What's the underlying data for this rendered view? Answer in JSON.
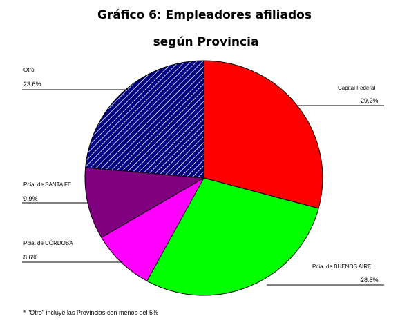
{
  "chart_data": {
    "type": "pie",
    "title_line1": "Gráfico 6: Empleadores afiliados",
    "title_line2": "según Provincia",
    "slices": [
      {
        "label": "Capital Federal",
        "pct_label": "29.2%",
        "value": 29.2,
        "color": "#ff0000",
        "pattern": "solid"
      },
      {
        "label": "Pcia. de BUENOS AIRE",
        "pct_label": "28.8%",
        "value": 28.8,
        "color": "#00ff00",
        "pattern": "solid"
      },
      {
        "label": "Pcia. de CÓRDOBA",
        "pct_label": "8.6%",
        "value": 8.6,
        "color": "#ff00ff",
        "pattern": "solid"
      },
      {
        "label": "Pcia. de SANTA FE",
        "pct_label": "9.9%",
        "value": 9.9,
        "color": "#800080",
        "pattern": "solid"
      },
      {
        "label": "Otro",
        "pct_label": "23.6%",
        "value": 23.6,
        "color": "#000080",
        "pattern": "hatch"
      }
    ],
    "footnote": "* \"Otro\" incluye las Provincias con menos del 5%"
  }
}
